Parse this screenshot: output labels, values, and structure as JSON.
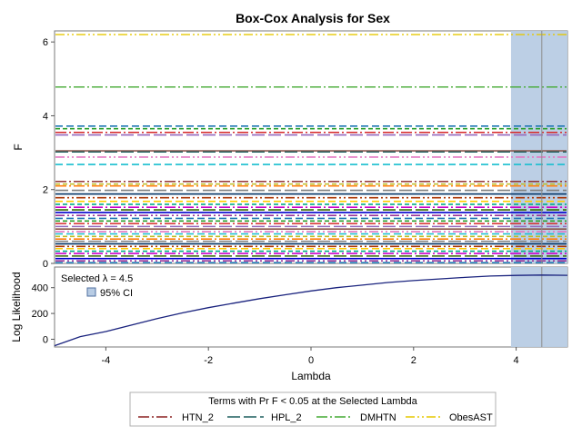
{
  "chart_data": [
    {
      "type": "line",
      "panel": "F by lambda",
      "title": "Box-Cox Analysis for Sex",
      "xlabel": "Lambda",
      "ylabel": "F",
      "xlim": [
        -5,
        5
      ],
      "ylim": [
        0,
        6.3
      ],
      "x_ticks": [
        -4,
        -2,
        0,
        2,
        4
      ],
      "y_ticks": [
        0,
        2,
        4,
        6
      ],
      "ci_band": [
        3.9,
        5
      ],
      "selected_lambda": 4.5,
      "highlighted_series": [
        {
          "name": "HTN_2",
          "color": "#8b2020",
          "dash": "dashdot",
          "value": 2.22
        },
        {
          "name": "HPL_2",
          "color": "#1d5f5f",
          "dash": "longdash",
          "value": 3.02
        },
        {
          "name": "DMHTN",
          "color": "#44aa33",
          "dash": "dashdot",
          "value": 4.78
        },
        {
          "name": "ObesAST",
          "color": "#e6c800",
          "dash": "dashdotdot",
          "value": 6.2
        }
      ],
      "other_series_values": [
        3.72,
        3.65,
        3.55,
        3.48,
        3.05,
        2.88,
        2.68,
        2.15,
        2.1,
        1.98,
        1.88,
        1.78,
        1.68,
        1.6,
        1.52,
        1.45,
        1.38,
        1.3,
        1.22,
        1.15,
        1.08,
        1.0,
        0.93,
        0.86,
        0.8,
        0.73,
        0.66,
        0.6,
        0.53,
        0.46,
        0.4,
        0.33,
        0.27,
        0.2,
        0.13,
        0.07,
        0.02
      ],
      "other_series_colors": [
        "#1f77b4",
        "#2ca02c",
        "#d62728",
        "#9467bd",
        "#8c564b",
        "#e377c2",
        "#17becf",
        "#bcbd22",
        "#ff7f0e",
        "#7f7f7f",
        "#003366",
        "#aa3300",
        "#ffcc00",
        "#00aa88",
        "#cc00cc",
        "#336600",
        "#0000cc",
        "#993399"
      ]
    },
    {
      "type": "line",
      "panel": "Log Likelihood by lambda",
      "xlabel": "Lambda",
      "ylabel": "Log Likelihood",
      "xlim": [
        -5,
        5
      ],
      "ylim": [
        -60,
        560
      ],
      "x_ticks": [
        -4,
        -2,
        0,
        2,
        4
      ],
      "y_ticks": [
        0,
        200,
        400
      ],
      "x": [
        -5,
        -4.5,
        -4,
        -3.5,
        -3,
        -2.5,
        -2,
        -1.5,
        -1,
        -0.5,
        0,
        0.5,
        1,
        1.5,
        2,
        2.5,
        3,
        3.5,
        4,
        4.5,
        5
      ],
      "y": [
        -50,
        20,
        60,
        110,
        160,
        205,
        245,
        280,
        315,
        345,
        375,
        400,
        420,
        440,
        455,
        468,
        480,
        490,
        495,
        498,
        496
      ],
      "color": "#1a237e",
      "annotation": "Selected λ = 4.5",
      "ci_legend_label": "95% CI"
    }
  ],
  "legend": {
    "title": "Terms with Pr F < 0.05 at the Selected Lambda",
    "entries": [
      "HTN_2",
      "HPL_2",
      "DMHTN",
      "ObesAST"
    ]
  }
}
